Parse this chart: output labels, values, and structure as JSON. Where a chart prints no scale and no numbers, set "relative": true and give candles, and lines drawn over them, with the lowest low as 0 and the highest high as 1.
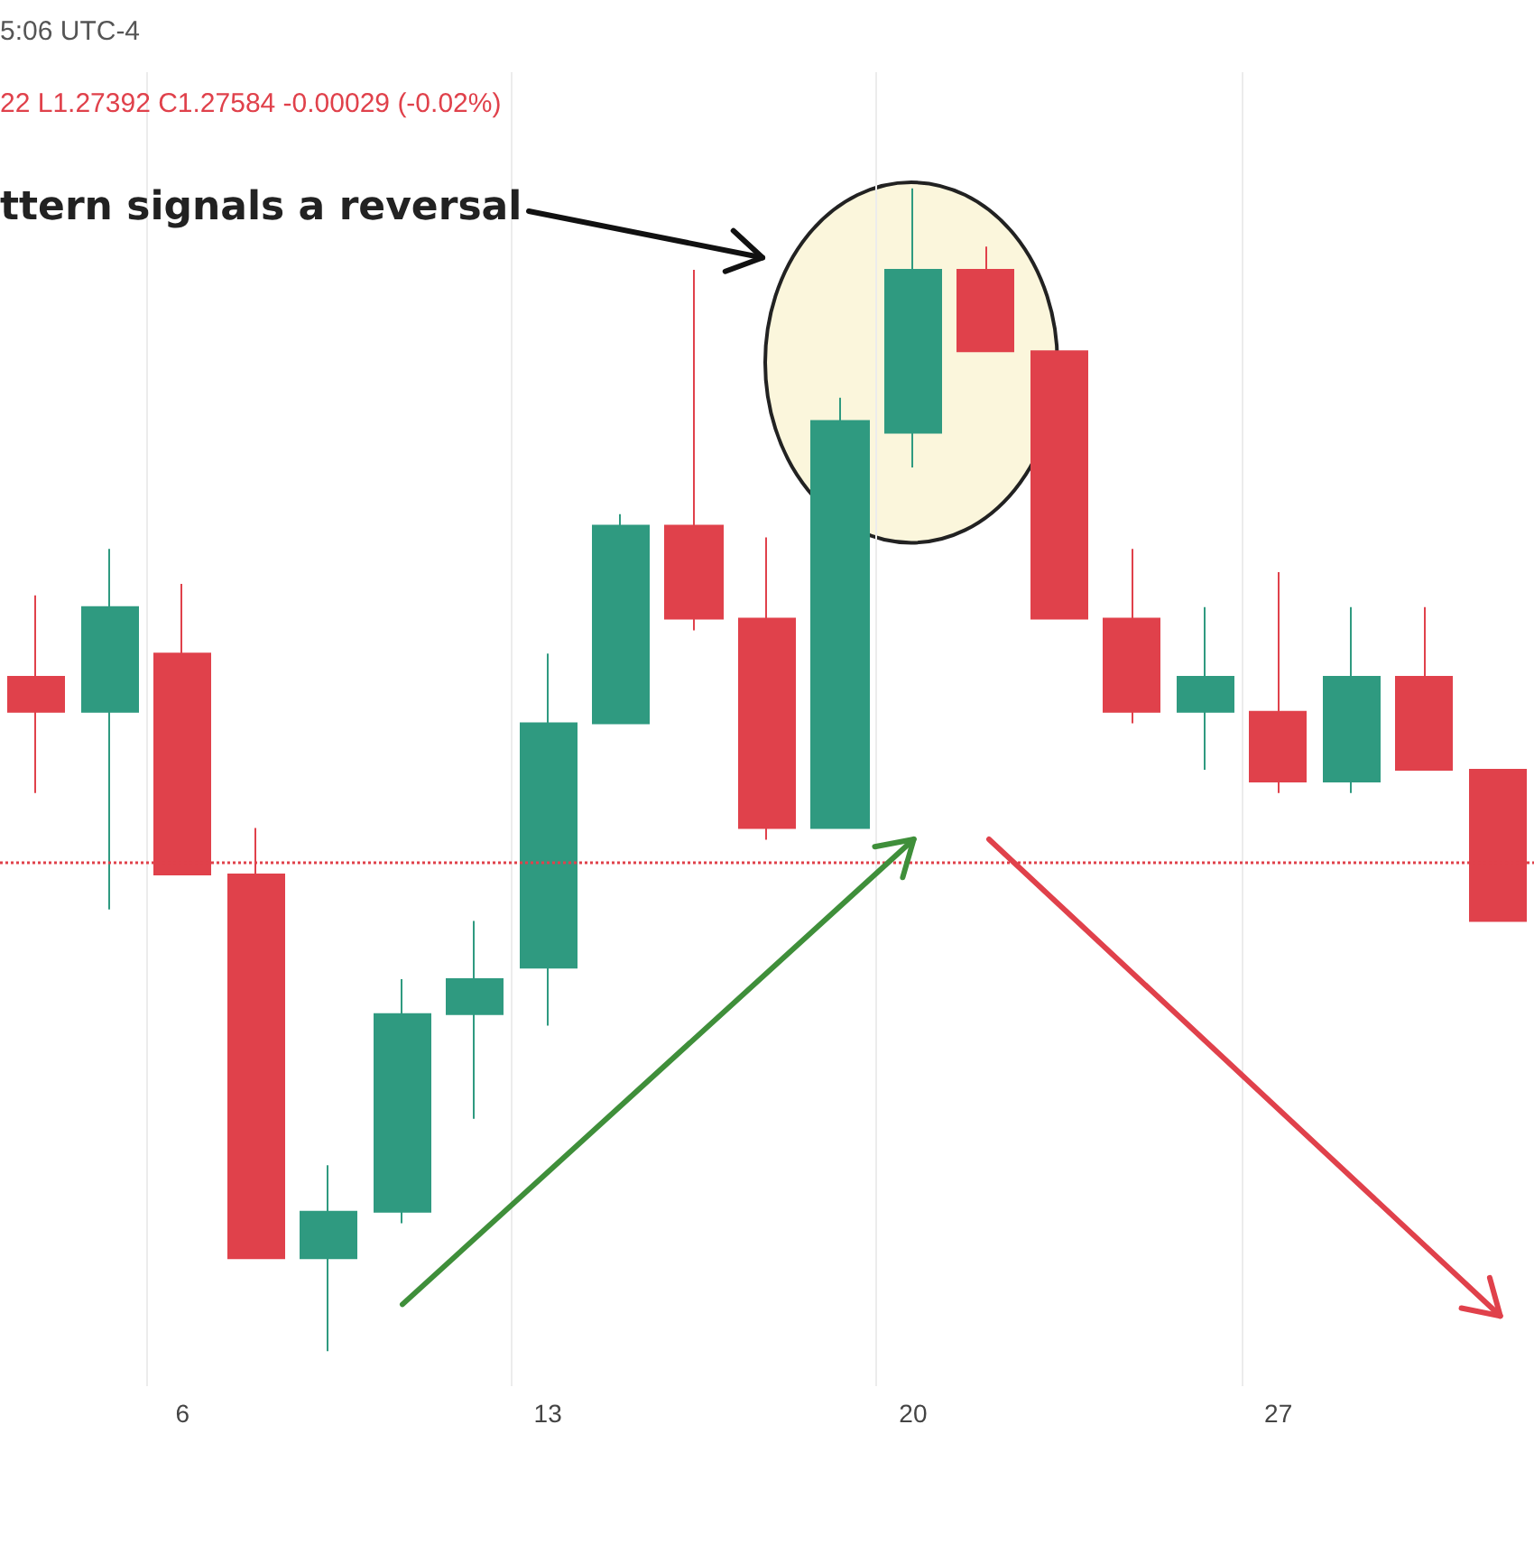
{
  "chart_data": {
    "type": "candlestick",
    "relative": true,
    "categories": [
      null,
      null,
      "6",
      null,
      null,
      null,
      null,
      "13",
      null,
      null,
      null,
      null,
      "20",
      null,
      null,
      null,
      null,
      "27",
      null,
      null,
      null
    ],
    "ohlc": [
      [
        0.58,
        0.65,
        0.48,
        0.55
      ],
      [
        0.55,
        0.69,
        0.38,
        0.64
      ],
      [
        0.6,
        0.66,
        0.41,
        0.41
      ],
      [
        0.41,
        0.45,
        0.08,
        0.08
      ],
      [
        0.08,
        0.16,
        0,
        0.12
      ],
      [
        0.12,
        0.32,
        0.11,
        0.29
      ],
      [
        0.29,
        0.37,
        0.2,
        0.32
      ],
      [
        0.33,
        0.6,
        0.28,
        0.54
      ],
      [
        0.54,
        0.72,
        0.54,
        0.71
      ],
      [
        0.71,
        0.93,
        0.62,
        0.63
      ],
      [
        0.63,
        0.7,
        0.44,
        0.45
      ],
      [
        0.45,
        0.82,
        0.45,
        0.8
      ],
      [
        0.79,
        1,
        0.76,
        0.93
      ],
      [
        0.93,
        0.95,
        0.86,
        0.86
      ],
      [
        0.86,
        0.86,
        0.63,
        0.63
      ],
      [
        0.63,
        0.69,
        0.54,
        0.55
      ],
      [
        0.55,
        0.64,
        0.5,
        0.58
      ],
      [
        0.55,
        0.67,
        0.48,
        0.49
      ],
      [
        0.49,
        0.64,
        0.48,
        0.58
      ],
      [
        0.58,
        0.64,
        0.5,
        0.5
      ],
      [
        0.5,
        0.5,
        0.37,
        0.37
      ]
    ],
    "colors": [
      "#e0414b",
      "#2f9a80",
      "#e0414b",
      "#e0414b",
      "#2f9a80",
      "#2f9a80",
      "#2f9a80",
      "#2f9a80",
      "#2f9a80",
      "#e0414b",
      "#e0414b",
      "#2f9a80",
      "#2f9a80",
      "#e0414b",
      "#e0414b",
      "#e0414b",
      "#2f9a80",
      "#e0414b",
      "#2f9a80",
      "#e0414b",
      "#e0414b"
    ],
    "ref_lines": [
      {
        "axis": "y",
        "value": 0.42,
        "label": null,
        "color": "#e0414b",
        "line_style": "dotted"
      }
    ],
    "annotations": [
      "5:06 UTC-4",
      "22 L1.27392 C1.27584 -0.00029 (-0.02%)",
      "ttern signals a reversal"
    ],
    "grid": "x"
  }
}
